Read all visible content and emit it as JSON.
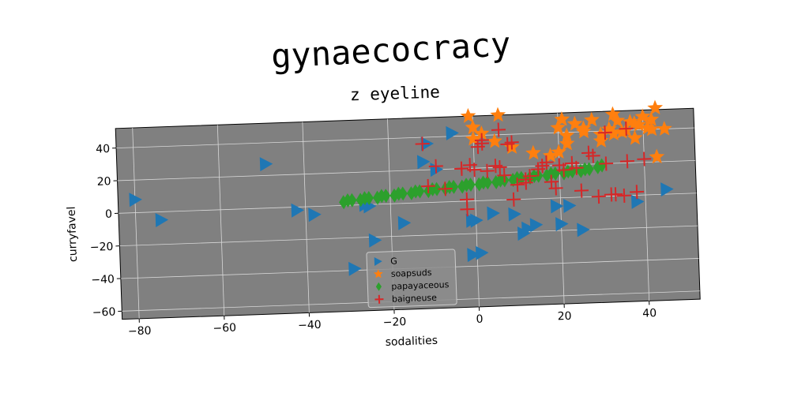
{
  "chart_data": {
    "type": "scatter",
    "title": "gynaecocracy",
    "subtitle": "z eyeline",
    "xlabel": "sodalities",
    "ylabel": "curryfavel",
    "xlim": [
      -84,
      52
    ],
    "ylim": [
      -65,
      52
    ],
    "xticks": [
      -80,
      -60,
      -40,
      -20,
      0,
      20,
      40
    ],
    "yticks": [
      -60,
      -40,
      -20,
      0,
      20,
      40
    ],
    "grid": true,
    "legend_position": "lower-center",
    "series": [
      {
        "name": "G",
        "marker": "triangle-right",
        "color": "#1f77b4",
        "x": [
          -80,
          -74,
          -49,
          -42,
          -38,
          -25,
          -24,
          -17,
          -29,
          -26,
          -12,
          -9,
          -5,
          -1,
          -11,
          0,
          1,
          4,
          9,
          11,
          12,
          14,
          19,
          20,
          22,
          25,
          38,
          45,
          -1
        ],
        "y": [
          8,
          -5,
          27,
          -2,
          -5,
          -1,
          -22,
          -12,
          -39,
          0,
          25,
          20,
          42,
          -12,
          36,
          -12,
          -32,
          -8,
          -9,
          -21,
          -18,
          -16,
          -5,
          -16,
          -5,
          -20,
          -4,
          3,
          -33
        ]
      },
      {
        "name": "soapsuds",
        "marker": "star",
        "color": "#ff7f0e",
        "x": [
          -1,
          0,
          6,
          2,
          0,
          5,
          9,
          14,
          18,
          21,
          20,
          22,
          24,
          26,
          28,
          30,
          32,
          33,
          34,
          36,
          38,
          40,
          41,
          43,
          38,
          20,
          22,
          30,
          35,
          39,
          42,
          26,
          33,
          37,
          42,
          45,
          43
        ],
        "y": [
          52,
          45,
          52,
          41,
          38,
          36,
          32,
          28,
          26,
          48,
          43,
          38,
          45,
          42,
          47,
          38,
          41,
          50,
          46,
          40,
          44,
          48,
          41,
          53,
          35,
          28,
          33,
          34,
          39,
          43,
          46,
          40,
          38,
          45,
          40,
          40,
          23
        ]
      },
      {
        "name": "papayaceous",
        "marker": "diamond",
        "color": "#2ca02c",
        "x": [
          -31,
          -29,
          -27,
          -25,
          -23,
          -21,
          -19,
          -17,
          -15,
          -13,
          -11,
          -9,
          -7,
          -5,
          -3,
          -1,
          1,
          3,
          5,
          7,
          9,
          11,
          13,
          15,
          17,
          19,
          21,
          23,
          25,
          27,
          29,
          -30,
          -26,
          -22,
          -18,
          -14,
          -10,
          -6,
          -2,
          2,
          6,
          10,
          14,
          18,
          22,
          26,
          30
        ],
        "y": [
          2,
          3,
          3,
          4,
          4,
          5,
          5,
          6,
          6,
          7,
          7,
          8,
          8,
          9,
          9,
          10,
          10,
          11,
          11,
          12,
          12,
          13,
          13,
          14,
          14,
          15,
          15,
          16,
          16,
          17,
          18,
          3,
          4,
          5,
          6,
          7,
          8,
          9,
          10,
          11,
          12,
          13,
          14,
          15,
          16,
          17,
          19
        ]
      },
      {
        "name": "baigneuse",
        "marker": "plus",
        "color": "#d62728",
        "x": [
          -12,
          -9,
          -11,
          -7,
          -3,
          -2,
          -1,
          0,
          1,
          3,
          5,
          6,
          8,
          9,
          10,
          12,
          15,
          17,
          18,
          19,
          21,
          23,
          25,
          27,
          29,
          31,
          33,
          35,
          36,
          38,
          40,
          -2,
          2,
          7,
          12,
          16,
          20,
          24,
          28,
          32,
          36,
          -3,
          9,
          13,
          31,
          2,
          6
        ],
        "y": [
          36,
          22,
          10,
          8,
          20,
          -5,
          22,
          19,
          33,
          18,
          21,
          43,
          34,
          35,
          9,
          12,
          18,
          22,
          10,
          6,
          17,
          21,
          4,
          27,
          0,
          20,
          1,
          0,
          21,
          2,
          22,
          1,
          37,
          15,
          10,
          20,
          20,
          18,
          25,
          1,
          41,
          20,
          0,
          14,
          39,
          35,
          20
        ]
      }
    ]
  }
}
